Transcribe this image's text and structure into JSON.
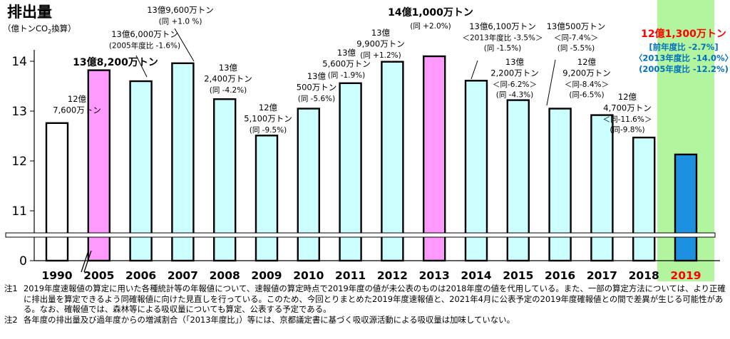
{
  "chart_data": {
    "type": "bar",
    "ytitle": "排出量",
    "yunit_prefix": "（億トンCO",
    "yunit_sub": "2",
    "yunit_suffix": "換算）",
    "yticks": [
      0,
      11,
      12,
      13,
      14
    ],
    "ylim": [
      0,
      14.5
    ],
    "categories": [
      "1990",
      "2005",
      "2006",
      "2007",
      "2008",
      "2009",
      "2010",
      "2011",
      "2012",
      "2013",
      "2014",
      "2015",
      "2016",
      "2017",
      "2018",
      "2019"
    ],
    "values": [
      12.76,
      13.82,
      13.6,
      13.96,
      13.24,
      12.51,
      13.05,
      13.56,
      13.99,
      14.1,
      13.61,
      13.22,
      13.05,
      12.92,
      12.47,
      12.13
    ],
    "bar_styles": [
      "white",
      "pink",
      "cyan",
      "cyan",
      "cyan",
      "cyan",
      "cyan",
      "cyan",
      "cyan",
      "pink",
      "cyan",
      "cyan",
      "cyan",
      "cyan",
      "cyan",
      "blue"
    ],
    "colors": {
      "cyan": "#ccffff",
      "pink": "#ff99ff",
      "white": "#ffffff",
      "blue": "#1e90e0",
      "highlight": "#b3f59e",
      "red": "#ff0000",
      "blue_text": "#0070c0"
    },
    "labels": [
      [
        "12億",
        "7,600万トン"
      ],
      [
        "13億8,200万トン"
      ],
      [
        "13億6,000万トン",
        "(2005年度比 -1.6%)"
      ],
      [
        "13億9,600万トン",
        "(同 +1.0 %)"
      ],
      [
        "13億",
        "2,400万トン",
        "(同 -4.2%)"
      ],
      [
        "12億",
        "5,100万トン",
        "(同 -9.5%)"
      ],
      [
        "13億",
        "500万トン",
        "(同 -5.6%)"
      ],
      [
        "13億",
        "5,600万トン",
        "(同 -1.9%)"
      ],
      [
        "13億",
        "9,900万トン",
        "(同 +1.2%)"
      ],
      [
        "14億1,000万トン",
        "(同 +2.0%)"
      ],
      [
        "13億6,100万トン",
        "＜2013年度比 -3.5%＞",
        "(同 -1.5%)"
      ],
      [
        "13億",
        "2,200万トン",
        "＜同-6.2%＞",
        "(同 -4.3%)"
      ],
      [
        "13億500万トン",
        "＜同-7.4%＞",
        "(同 -5.5%)"
      ],
      [
        "12億",
        "9,200万トン",
        "＜同-8.4%＞",
        "(同-6.5%)"
      ],
      [
        "12億",
        "4,700万トン",
        "＜同-11.6%＞",
        "(同-9.8%)"
      ],
      [
        "12億1,300万トン",
        "[前年度比 -2.7%]",
        "〈2013年度比 -14.0%〉",
        "(2005年度比 -12.2%)"
      ]
    ]
  },
  "notes": [
    {
      "label": "注1",
      "text": "2019年度速報値の算定に用いた各種統計等の年報値について、速報値の算定時点で2019年度の値が未公表のものは2018年度の値を代用している。また、一部の算定方法については、より正確に排出量を算定できるよう同確報値に向けた見直しを行っている。このため、今回とりまとめた2019年度速報値と、2021年4月に公表予定の2019年度確報値との間で差異が生じる可能性がある。なお、確報値では、森林等による吸収量についても算定、公表する予定である。"
    },
    {
      "label": "注2",
      "text": "各年度の排出量及び過年度からの増減割合（「2013年度比」）等には、京都議定書に基づく吸収源活動による吸収量は加味していない。"
    }
  ]
}
